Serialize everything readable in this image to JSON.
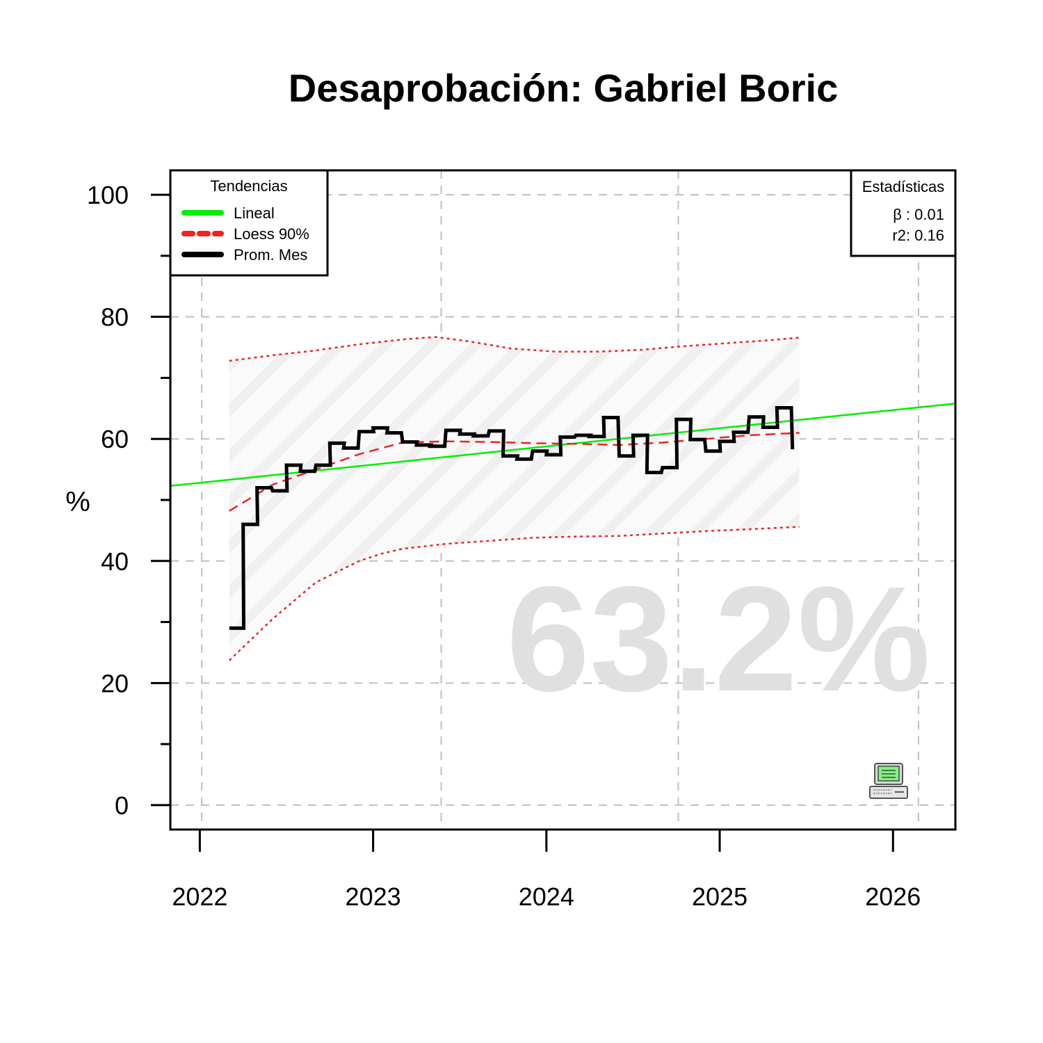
{
  "chart_data": {
    "type": "line",
    "title": "Desaprobación: Gabriel Boric",
    "xlabel": "",
    "ylabel": "%",
    "xlim": [
      2021.83,
      2026.36
    ],
    "ylim": [
      -4,
      104
    ],
    "x_ticks": [
      "2022",
      "2023",
      "2024",
      "2025",
      "2026"
    ],
    "y_ticks": [
      "0",
      "20",
      "40",
      "60",
      "80",
      "100"
    ],
    "grid": true,
    "big_label": "63.2%",
    "colors": {
      "lineal": "#00ee00",
      "loess": "#ee2222",
      "prom_mes": "#000000",
      "grid": "#bfbfbf",
      "big_label": "#e0e0e0",
      "band": "#f2f2f2"
    },
    "legend": {
      "position": "top-left",
      "title": "Tendencias",
      "items": [
        {
          "label": "Lineal",
          "style": "solid",
          "color": "#00ee00"
        },
        {
          "label": "Loess 90%",
          "style": "dashed",
          "color": "#ee2222"
        },
        {
          "label": "Prom. Mes",
          "style": "solid",
          "color": "#000000"
        }
      ]
    },
    "stats": {
      "position": "top-right",
      "title": "Estadísticas",
      "beta": "β : 0.01",
      "r2": "r2: 0.16"
    },
    "series": [
      {
        "name": "Prom. Mes",
        "type": "step",
        "x": [
          2022.17,
          2022.25,
          2022.33,
          2022.42,
          2022.5,
          2022.58,
          2022.67,
          2022.75,
          2022.83,
          2022.92,
          2023.0,
          2023.08,
          2023.17,
          2023.25,
          2023.33,
          2023.42,
          2023.5,
          2023.58,
          2023.67,
          2023.75,
          2023.83,
          2023.92,
          2024.0,
          2024.08,
          2024.17,
          2024.25,
          2024.33,
          2024.42,
          2024.5,
          2024.58,
          2024.67,
          2024.75,
          2024.83,
          2024.92,
          2025.0,
          2025.08,
          2025.17,
          2025.25,
          2025.33,
          2025.42
        ],
        "values": [
          29,
          46,
          52,
          51.5,
          55.7,
          54.7,
          55.7,
          59.3,
          58.5,
          61.2,
          61.8,
          61,
          59.5,
          59,
          58.8,
          61.4,
          60.8,
          60.5,
          61.3,
          57.2,
          56.7,
          58,
          57.4,
          60.3,
          60.6,
          60.4,
          63.5,
          57.2,
          60.6,
          54.5,
          55.3,
          63.2,
          59.9,
          58,
          59.6,
          61.1,
          63.6,
          61.9,
          65.1,
          58.3
        ]
      },
      {
        "name": "Lineal",
        "type": "line",
        "x": [
          2021.83,
          2026.36
        ],
        "values": [
          52.3,
          65.8
        ]
      },
      {
        "name": "Loess 90%",
        "type": "line",
        "x": [
          2022.17,
          2022.42,
          2022.67,
          2022.92,
          2023.17,
          2023.42,
          2023.67,
          2023.92,
          2024.17,
          2024.42,
          2024.67,
          2024.92,
          2025.17,
          2025.46
        ],
        "values": [
          48.2,
          52.5,
          55,
          57.5,
          59.4,
          59.6,
          59.5,
          59.3,
          59.2,
          59,
          59.4,
          60,
          60.6,
          61
        ]
      },
      {
        "name": "Loess upper",
        "type": "line",
        "x": [
          2022.17,
          2022.42,
          2022.67,
          2022.92,
          2023.17,
          2023.36,
          2023.55,
          2023.8,
          2024.05,
          2024.3,
          2024.55,
          2024.8,
          2025.05,
          2025.3,
          2025.46
        ],
        "values": [
          72.8,
          73.7,
          74.5,
          75.5,
          76.3,
          76.7,
          76,
          74.8,
          74.3,
          74.3,
          74.6,
          75.2,
          75.7,
          76.2,
          76.6
        ]
      },
      {
        "name": "Loess lower",
        "type": "line",
        "x": [
          2022.17,
          2022.42,
          2022.67,
          2022.92,
          2023.05,
          2023.17,
          2023.42,
          2023.67,
          2023.92,
          2024.17,
          2024.42,
          2024.67,
          2024.92,
          2025.17,
          2025.46
        ],
        "values": [
          23.7,
          30.5,
          36.5,
          40,
          41.2,
          42,
          42.8,
          43.3,
          43.8,
          44,
          44.1,
          44.5,
          44.9,
          45.2,
          45.6
        ]
      }
    ]
  }
}
